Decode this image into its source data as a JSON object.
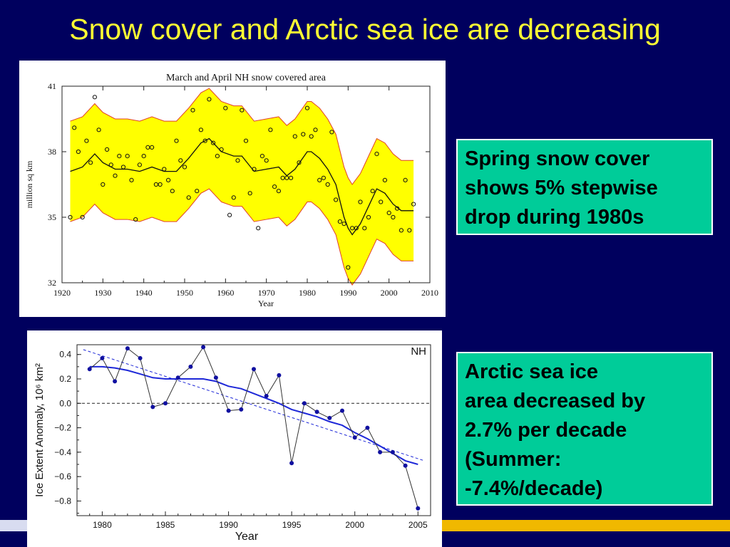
{
  "slide": {
    "title": "Snow cover and Arctic sea ice are decreasing"
  },
  "callouts": {
    "snow": [
      "Spring snow cover",
      "shows 5% stepwise",
      "drop during 1980s"
    ],
    "ice": [
      "Arctic sea ice",
      "area decreased by",
      "2.7% per decade",
      "(Summer:",
      "-7.4%/decade)"
    ]
  },
  "colors": {
    "background": "#00005e",
    "title": "#ffff33",
    "callout": "#00cc99",
    "band": "#ffff00",
    "band_edge": "#e0402a",
    "ice_series": "#1010a0",
    "ice_smooth": "#1e28d8"
  },
  "chart_data": [
    {
      "type": "scatter",
      "title": "March and April NH snow covered area",
      "xlabel": "Year",
      "ylabel": "million sq km",
      "xlim": [
        1920,
        2010
      ],
      "ylim": [
        32,
        41
      ],
      "xticks": [
        1920,
        1930,
        1940,
        1950,
        1960,
        1970,
        1980,
        1990,
        2000,
        2010
      ],
      "yticks": [
        32,
        35,
        38,
        41
      ],
      "grid": false,
      "points": [
        [
          1922,
          35.0
        ],
        [
          1923,
          39.1
        ],
        [
          1924,
          38.0
        ],
        [
          1925,
          35.0
        ],
        [
          1926,
          38.5
        ],
        [
          1927,
          37.5
        ],
        [
          1928,
          40.5
        ],
        [
          1929,
          39.0
        ],
        [
          1930,
          36.5
        ],
        [
          1931,
          38.1
        ],
        [
          1932,
          37.4
        ],
        [
          1933,
          36.9
        ],
        [
          1934,
          37.8
        ],
        [
          1935,
          37.3
        ],
        [
          1936,
          37.8
        ],
        [
          1937,
          36.7
        ],
        [
          1938,
          34.9
        ],
        [
          1939,
          37.4
        ],
        [
          1940,
          37.8
        ],
        [
          1941,
          38.2
        ],
        [
          1942,
          38.2
        ],
        [
          1943,
          36.5
        ],
        [
          1944,
          36.5
        ],
        [
          1945,
          37.2
        ],
        [
          1946,
          36.7
        ],
        [
          1947,
          36.2
        ],
        [
          1948,
          38.5
        ],
        [
          1949,
          37.6
        ],
        [
          1950,
          37.3
        ],
        [
          1951,
          35.9
        ],
        [
          1952,
          39.9
        ],
        [
          1953,
          36.2
        ],
        [
          1954,
          39.0
        ],
        [
          1955,
          38.5
        ],
        [
          1956,
          40.4
        ],
        [
          1957,
          38.4
        ],
        [
          1958,
          37.8
        ],
        [
          1959,
          38.1
        ],
        [
          1960,
          40.0
        ],
        [
          1961,
          35.1
        ],
        [
          1962,
          35.9
        ],
        [
          1963,
          37.6
        ],
        [
          1964,
          39.9
        ],
        [
          1965,
          38.5
        ],
        [
          1966,
          36.1
        ],
        [
          1967,
          37.2
        ],
        [
          1968,
          34.5
        ],
        [
          1969,
          37.8
        ],
        [
          1970,
          37.6
        ],
        [
          1971,
          39.0
        ],
        [
          1972,
          36.4
        ],
        [
          1973,
          36.2
        ],
        [
          1974,
          36.8
        ],
        [
          1975,
          36.8
        ],
        [
          1976,
          36.8
        ],
        [
          1977,
          38.7
        ],
        [
          1978,
          37.5
        ],
        [
          1979,
          38.8
        ],
        [
          1980,
          40.0
        ],
        [
          1981,
          38.7
        ],
        [
          1982,
          39.0
        ],
        [
          1983,
          36.7
        ],
        [
          1984,
          36.8
        ],
        [
          1985,
          36.5
        ],
        [
          1986,
          38.9
        ],
        [
          1987,
          35.8
        ],
        [
          1988,
          34.8
        ],
        [
          1989,
          34.7
        ],
        [
          1990,
          32.7
        ],
        [
          1991,
          34.5
        ],
        [
          1992,
          34.5
        ],
        [
          1993,
          35.7
        ],
        [
          1994,
          34.5
        ],
        [
          1995,
          35.0
        ],
        [
          1996,
          36.2
        ],
        [
          1997,
          37.9
        ],
        [
          1998,
          35.7
        ],
        [
          1999,
          36.7
        ],
        [
          2000,
          35.2
        ],
        [
          2001,
          35.0
        ],
        [
          2002,
          35.4
        ],
        [
          2003,
          34.4
        ],
        [
          2004,
          36.7
        ],
        [
          2005,
          34.4
        ],
        [
          2006,
          35.6
        ]
      ],
      "smooth": [
        [
          1922,
          37.1
        ],
        [
          1925,
          37.3
        ],
        [
          1928,
          37.9
        ],
        [
          1930,
          37.5
        ],
        [
          1933,
          37.2
        ],
        [
          1936,
          37.2
        ],
        [
          1939,
          37.1
        ],
        [
          1942,
          37.3
        ],
        [
          1945,
          37.1
        ],
        [
          1948,
          37.1
        ],
        [
          1951,
          37.7
        ],
        [
          1954,
          38.4
        ],
        [
          1956,
          38.6
        ],
        [
          1959,
          38.0
        ],
        [
          1962,
          37.8
        ],
        [
          1964,
          37.8
        ],
        [
          1967,
          37.1
        ],
        [
          1970,
          37.2
        ],
        [
          1973,
          37.3
        ],
        [
          1975,
          36.9
        ],
        [
          1977,
          37.2
        ],
        [
          1980,
          38.0
        ],
        [
          1981,
          38.0
        ],
        [
          1983,
          37.7
        ],
        [
          1985,
          37.2
        ],
        [
          1987,
          36.5
        ],
        [
          1989,
          35.0
        ],
        [
          1990,
          34.5
        ],
        [
          1991,
          34.2
        ],
        [
          1993,
          34.7
        ],
        [
          1995,
          35.5
        ],
        [
          1997,
          36.3
        ],
        [
          1999,
          36.1
        ],
        [
          2001,
          35.6
        ],
        [
          2003,
          35.3
        ],
        [
          2006,
          35.3
        ]
      ],
      "band_halfwidth": 2.3
    },
    {
      "type": "line",
      "title": "",
      "region_label": "NH",
      "xlabel": "Year",
      "ylabel": "Ice Extent Anomaly, 10⁶ km²",
      "xlim": [
        1978,
        2006
      ],
      "ylim": [
        -0.92,
        0.48
      ],
      "xticks": [
        1980,
        1985,
        1990,
        1995,
        2000,
        2005
      ],
      "yticks": [
        0.4,
        0.2,
        0.0,
        -0.2,
        -0.4,
        -0.6,
        -0.8
      ],
      "ytick_labels": [
        "0.4",
        "0.2",
        "0.0",
        "−0.2",
        "−0.4",
        "−0.6",
        "−0.8"
      ],
      "series": [
        {
          "x": [
            1979,
            1980,
            1981,
            1982,
            1983,
            1984,
            1985,
            1986,
            1987,
            1988,
            1989,
            1990,
            1991,
            1992,
            1993,
            1994,
            1995,
            1996,
            1997,
            1998,
            1999,
            2000,
            2001,
            2002,
            2003,
            2004,
            2005
          ],
          "values": [
            0.28,
            0.37,
            0.18,
            0.45,
            0.37,
            -0.03,
            0.0,
            0.21,
            0.3,
            0.46,
            0.21,
            -0.06,
            -0.05,
            0.28,
            0.06,
            0.23,
            -0.49,
            0.0,
            -0.07,
            -0.12,
            -0.06,
            -0.28,
            -0.2,
            -0.4,
            -0.4,
            -0.51,
            -0.86
          ]
        }
      ],
      "smooth": [
        [
          1979,
          0.3
        ],
        [
          1980,
          0.3
        ],
        [
          1981,
          0.29
        ],
        [
          1982,
          0.27
        ],
        [
          1983,
          0.24
        ],
        [
          1984,
          0.21
        ],
        [
          1985,
          0.2
        ],
        [
          1986,
          0.2
        ],
        [
          1987,
          0.2
        ],
        [
          1988,
          0.2
        ],
        [
          1989,
          0.18
        ],
        [
          1990,
          0.14
        ],
        [
          1991,
          0.12
        ],
        [
          1992,
          0.08
        ],
        [
          1993,
          0.04
        ],
        [
          1994,
          0.0
        ],
        [
          1995,
          -0.05
        ],
        [
          1996,
          -0.08
        ],
        [
          1997,
          -0.11
        ],
        [
          1998,
          -0.15
        ],
        [
          1999,
          -0.18
        ],
        [
          2000,
          -0.24
        ],
        [
          2001,
          -0.29
        ],
        [
          2002,
          -0.35
        ],
        [
          2003,
          -0.41
        ],
        [
          2004,
          -0.47
        ],
        [
          2005,
          -0.5
        ]
      ],
      "trend": [
        [
          1978.5,
          0.44
        ],
        [
          2005.5,
          -0.47
        ]
      ],
      "reference_line": 0.0
    }
  ]
}
